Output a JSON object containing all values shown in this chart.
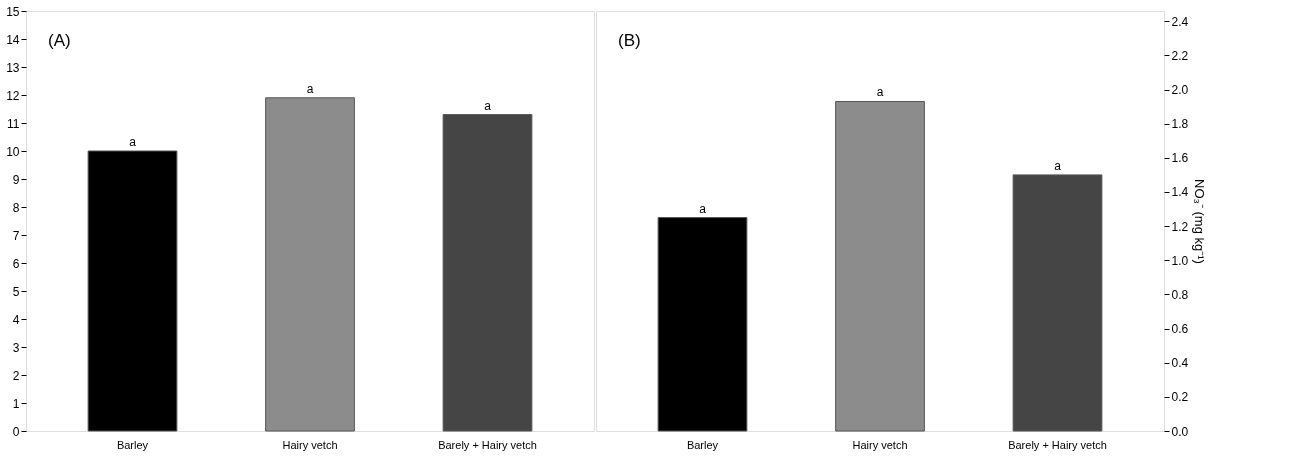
{
  "chart_data": [
    {
      "type": "bar",
      "categories": [
        "Barley",
        "Hairy vetch",
        "Barely + Hairy vetch"
      ],
      "values": [
        10.0,
        11.9,
        11.3
      ],
      "colors": [
        "#000000",
        "#8c8c8c",
        "#454545"
      ],
      "value_labels": [
        "a",
        "a",
        "a"
      ],
      "ylim": [
        0,
        15
      ],
      "yticks": [
        0,
        1,
        2,
        3,
        4,
        5,
        6,
        7,
        8,
        9,
        10,
        11,
        12,
        13,
        14,
        15
      ],
      "annotations": [
        "(A)"
      ],
      "grid": false
    },
    {
      "type": "bar",
      "categories": [
        "Barley",
        "Hairy vetch",
        "Barely + Hairy vetch"
      ],
      "values": [
        1.25,
        1.93,
        1.5
      ],
      "colors": [
        "#000000",
        "#8c8c8c",
        "#454545"
      ],
      "value_labels": [
        "a",
        "a",
        "a"
      ],
      "ylim": [
        0,
        2.46
      ],
      "yticks": [
        {
          "value": 0,
          "label": "0.0"
        },
        0.2,
        0.4,
        0.6,
        0.8,
        {
          "value": 1,
          "label": "1.0"
        },
        1.2,
        1.4,
        1.6,
        1.8,
        {
          "value": 2,
          "label": "2.0"
        },
        2.2,
        2.4
      ],
      "ylabel": "NO₃⁻ (mg kg⁻¹)",
      "annotations": [
        "(B)"
      ],
      "grid": false
    }
  ]
}
